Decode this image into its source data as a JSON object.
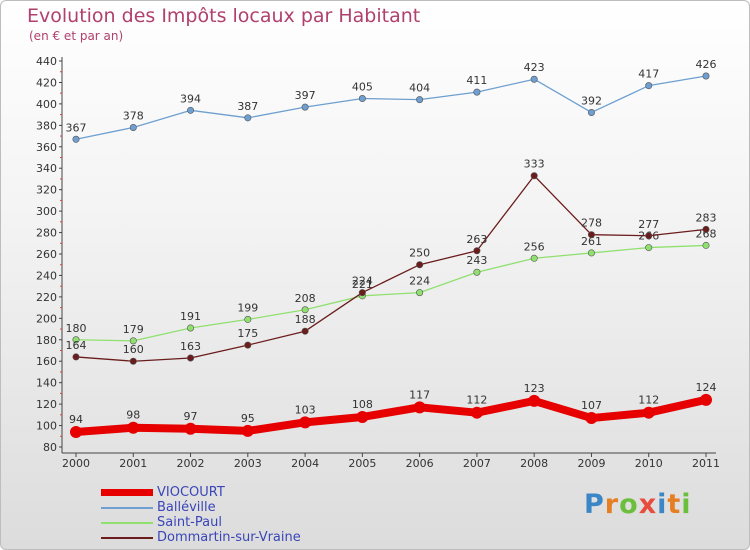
{
  "title": "Evolution des Impôts locaux par Habitant",
  "subtitle": "(en € et par an)",
  "logo": {
    "text": "Proxiti",
    "colors": [
      "#3b86c6",
      "#e67e22",
      "#6cbf3c",
      "#e74c3c",
      "#3b86c6",
      "#e67e22",
      "#6cbf3c"
    ]
  },
  "chart_data": {
    "type": "line",
    "x": [
      "2000",
      "2001",
      "2002",
      "2003",
      "2004",
      "2005",
      "2006",
      "2007",
      "2008",
      "2009",
      "2010",
      "2011"
    ],
    "ylim": [
      80,
      440
    ],
    "yticks": [
      80,
      100,
      120,
      140,
      160,
      180,
      200,
      220,
      240,
      260,
      280,
      300,
      320,
      340,
      360,
      380,
      400,
      420,
      440
    ],
    "grid": false,
    "legend_position": "bottom-left",
    "series": [
      {
        "name": "VIOCOURT",
        "color": "#e60000",
        "thick": true,
        "values": [
          94,
          98,
          97,
          95,
          103,
          108,
          117,
          112,
          123,
          107,
          112,
          124
        ]
      },
      {
        "name": "Balléville",
        "color": "#6e9fd0",
        "thick": false,
        "values": [
          367,
          378,
          394,
          387,
          397,
          405,
          404,
          411,
          423,
          392,
          417,
          426
        ]
      },
      {
        "name": "Saint-Paul",
        "color": "#90e070",
        "thick": false,
        "values": [
          180,
          179,
          191,
          199,
          208,
          221,
          224,
          243,
          256,
          261,
          266,
          268
        ]
      },
      {
        "name": "Dommartin-sur-Vraine",
        "color": "#6b1c1c",
        "thick": false,
        "values": [
          164,
          160,
          163,
          175,
          188,
          224,
          250,
          263,
          333,
          278,
          277,
          283
        ]
      }
    ]
  }
}
